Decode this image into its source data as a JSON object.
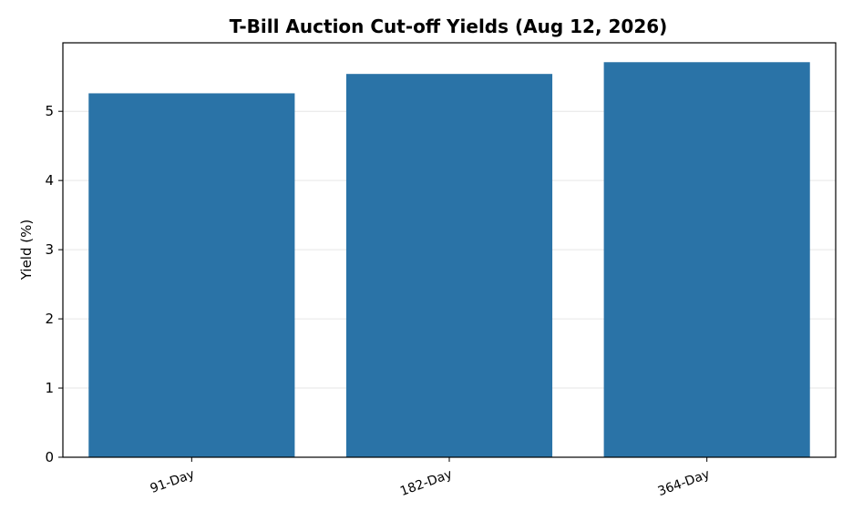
{
  "chart_data": {
    "type": "bar",
    "title": "T-Bill Auction Cut-off Yields (Aug 12, 2026)",
    "xlabel": "",
    "ylabel": "Yield (%)",
    "categories": [
      "91-Day",
      "182-Day",
      "364-Day"
    ],
    "values": [
      5.26,
      5.54,
      5.71
    ],
    "ylim": [
      0,
      5.99
    ],
    "yticks": [
      0,
      1,
      2,
      3,
      4,
      5
    ],
    "grid": "y",
    "legend": "none",
    "bar_color": "#2a73a7"
  }
}
